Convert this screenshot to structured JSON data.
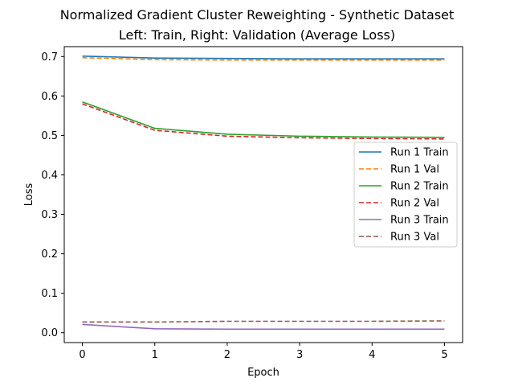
{
  "chart_data": {
    "type": "line",
    "title": "Normalized Gradient Cluster Reweighting - Synthetic Dataset",
    "subtitle": "Left: Train, Right: Validation (Average Loss)",
    "xlabel": "Epoch",
    "ylabel": "Loss",
    "xlim": [
      -0.25,
      5.25
    ],
    "ylim": [
      -0.025,
      0.725
    ],
    "xticks": [
      0,
      1,
      2,
      3,
      4,
      5
    ],
    "yticks": [
      0.0,
      0.1,
      0.2,
      0.3,
      0.4,
      0.5,
      0.6,
      0.7
    ],
    "ytick_labels": [
      "0.0",
      "0.1",
      "0.2",
      "0.3",
      "0.4",
      "0.5",
      "0.6",
      "0.7"
    ],
    "grid": false,
    "legend_position": "center-right",
    "x": [
      0,
      1,
      2,
      3,
      4,
      5
    ],
    "series": [
      {
        "name": "Run 1 Train",
        "color": "#1f77b4",
        "dash": "solid",
        "values": [
          0.701,
          0.696,
          0.695,
          0.694,
          0.694,
          0.694
        ]
      },
      {
        "name": "Run 1 Val",
        "color": "#ff7f0e",
        "dash": "dashed",
        "values": [
          0.697,
          0.692,
          0.691,
          0.691,
          0.691,
          0.691
        ]
      },
      {
        "name": "Run 2 Train",
        "color": "#2ca02c",
        "dash": "solid",
        "values": [
          0.585,
          0.518,
          0.503,
          0.498,
          0.496,
          0.495
        ]
      },
      {
        "name": "Run 2 Val",
        "color": "#d62728",
        "dash": "dashed",
        "values": [
          0.58,
          0.513,
          0.498,
          0.494,
          0.492,
          0.491
        ]
      },
      {
        "name": "Run 3 Train",
        "color": "#9467bd",
        "dash": "solid",
        "values": [
          0.021,
          0.01,
          0.009,
          0.009,
          0.009,
          0.009
        ]
      },
      {
        "name": "Run 3 Val",
        "color": "#8c564b",
        "dash": "dashed",
        "values": [
          0.027,
          0.027,
          0.029,
          0.029,
          0.029,
          0.03
        ]
      }
    ]
  }
}
